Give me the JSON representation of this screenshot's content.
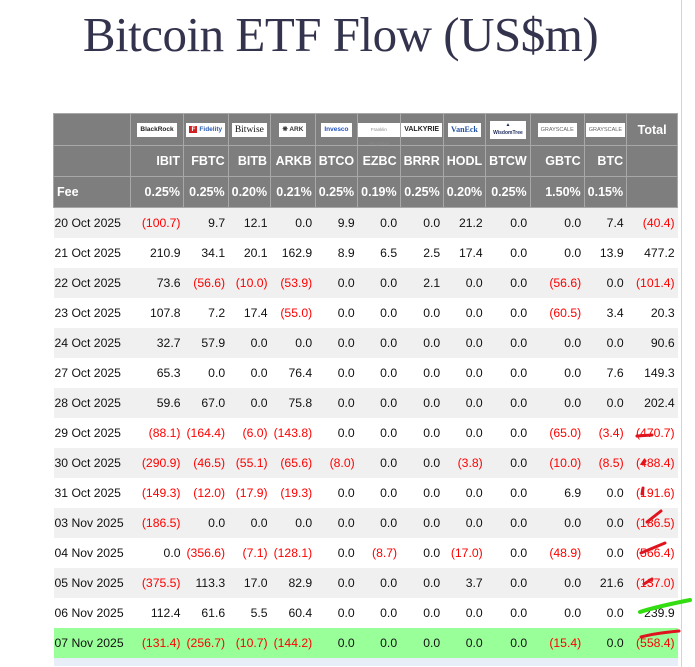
{
  "title": "Bitcoin ETF Flow (US$m)",
  "table": {
    "fee_label": "Fee",
    "total_label": "Total",
    "columns": [
      {
        "ticker": "IBIT",
        "issuer": "BlackRock",
        "fee": "0.25%"
      },
      {
        "ticker": "FBTC",
        "issuer": "Fidelity",
        "fee": "0.25%"
      },
      {
        "ticker": "BITB",
        "issuer": "Bitwise",
        "fee": "0.20%"
      },
      {
        "ticker": "ARKB",
        "issuer": "ARK Invest",
        "fee": "0.21%"
      },
      {
        "ticker": "BTCO",
        "issuer": "Invesco",
        "fee": "0.25%"
      },
      {
        "ticker": "EZBC",
        "issuer": "Franklin Templeton",
        "fee": "0.19%"
      },
      {
        "ticker": "BRRR",
        "issuer": "Valkyrie",
        "fee": "0.25%"
      },
      {
        "ticker": "HODL",
        "issuer": "VanEck",
        "fee": "0.20%"
      },
      {
        "ticker": "BTCW",
        "issuer": "WisdomTree",
        "fee": "0.25%"
      },
      {
        "ticker": "GBTC",
        "issuer": "Grayscale",
        "fee": "1.50%"
      },
      {
        "ticker": "BTC",
        "issuer": "Grayscale",
        "fee": "0.15%"
      }
    ],
    "rows": [
      {
        "date": "20 Oct 2025",
        "values": [
          "(100.7)",
          "9.7",
          "12.1",
          "0.0",
          "9.9",
          "0.0",
          "0.0",
          "21.2",
          "0.0",
          "0.0",
          "7.4"
        ],
        "total": "(40.4)"
      },
      {
        "date": "21 Oct 2025",
        "values": [
          "210.9",
          "34.1",
          "20.1",
          "162.9",
          "8.9",
          "6.5",
          "2.5",
          "17.4",
          "0.0",
          "0.0",
          "13.9"
        ],
        "total": "477.2"
      },
      {
        "date": "22 Oct 2025",
        "values": [
          "73.6",
          "(56.6)",
          "(10.0)",
          "(53.9)",
          "0.0",
          "0.0",
          "2.1",
          "0.0",
          "0.0",
          "(56.6)",
          "0.0"
        ],
        "total": "(101.4)"
      },
      {
        "date": "23 Oct 2025",
        "values": [
          "107.8",
          "7.2",
          "17.4",
          "(55.0)",
          "0.0",
          "0.0",
          "0.0",
          "0.0",
          "0.0",
          "(60.5)",
          "3.4"
        ],
        "total": "20.3"
      },
      {
        "date": "24 Oct 2025",
        "values": [
          "32.7",
          "57.9",
          "0.0",
          "0.0",
          "0.0",
          "0.0",
          "0.0",
          "0.0",
          "0.0",
          "0.0",
          "0.0"
        ],
        "total": "90.6"
      },
      {
        "date": "27 Oct 2025",
        "values": [
          "65.3",
          "0.0",
          "0.0",
          "76.4",
          "0.0",
          "0.0",
          "0.0",
          "0.0",
          "0.0",
          "0.0",
          "7.6"
        ],
        "total": "149.3"
      },
      {
        "date": "28 Oct 2025",
        "values": [
          "59.6",
          "67.0",
          "0.0",
          "75.8",
          "0.0",
          "0.0",
          "0.0",
          "0.0",
          "0.0",
          "0.0",
          "0.0"
        ],
        "total": "202.4"
      },
      {
        "date": "29 Oct 2025",
        "values": [
          "(88.1)",
          "(164.4)",
          "(6.0)",
          "(143.8)",
          "0.0",
          "0.0",
          "0.0",
          "0.0",
          "0.0",
          "(65.0)",
          "(3.4)"
        ],
        "total": "(470.7)"
      },
      {
        "date": "30 Oct 2025",
        "values": [
          "(290.9)",
          "(46.5)",
          "(55.1)",
          "(65.6)",
          "(8.0)",
          "0.0",
          "0.0",
          "(3.8)",
          "0.0",
          "(10.0)",
          "(8.5)"
        ],
        "total": "(488.4)"
      },
      {
        "date": "31 Oct 2025",
        "values": [
          "(149.3)",
          "(12.0)",
          "(17.9)",
          "(19.3)",
          "0.0",
          "0.0",
          "0.0",
          "0.0",
          "0.0",
          "6.9",
          "0.0"
        ],
        "total": "(191.6)"
      },
      {
        "date": "03 Nov 2025",
        "values": [
          "(186.5)",
          "0.0",
          "0.0",
          "0.0",
          "0.0",
          "0.0",
          "0.0",
          "0.0",
          "0.0",
          "0.0",
          "0.0"
        ],
        "total": "(186.5)"
      },
      {
        "date": "04 Nov 2025",
        "values": [
          "0.0",
          "(356.6)",
          "(7.1)",
          "(128.1)",
          "0.0",
          "(8.7)",
          "0.0",
          "(17.0)",
          "0.0",
          "(48.9)",
          "0.0"
        ],
        "total": "(566.4)"
      },
      {
        "date": "05 Nov 2025",
        "values": [
          "(375.5)",
          "113.3",
          "17.0",
          "82.9",
          "0.0",
          "0.0",
          "0.0",
          "3.7",
          "0.0",
          "0.0",
          "21.6"
        ],
        "total": "(137.0)"
      },
      {
        "date": "06 Nov 2025",
        "values": [
          "112.4",
          "61.6",
          "5.5",
          "60.4",
          "0.0",
          "0.0",
          "0.0",
          "0.0",
          "0.0",
          "0.0",
          "0.0"
        ],
        "total": "239.9"
      },
      {
        "date": "07 Nov 2025",
        "values": [
          "(131.4)",
          "(256.7)",
          "(10.7)",
          "(144.2)",
          "0.0",
          "0.0",
          "0.0",
          "0.0",
          "0.0",
          "(15.4)",
          "0.0"
        ],
        "total": "(558.4)",
        "highlight": true
      }
    ]
  },
  "colors": {
    "header_bg": "#7e7e7e",
    "negative": "#ff0000",
    "highlight_row": "#99ff99",
    "title": "#33334d",
    "annotation_red": "#e0141e",
    "annotation_green": "#33dd11"
  },
  "annotations": {
    "marks": [
      {
        "row": "29 Oct 2025",
        "color": "red"
      },
      {
        "row": "30 Oct 2025",
        "color": "red"
      },
      {
        "row": "31 Oct 2025",
        "color": "red"
      },
      {
        "row": "03 Nov 2025",
        "color": "red"
      },
      {
        "row": "04 Nov 2025",
        "color": "red"
      },
      {
        "row": "05 Nov 2025",
        "color": "red"
      },
      {
        "row": "06 Nov 2025",
        "color": "green"
      },
      {
        "row": "07 Nov 2025",
        "color": "red"
      }
    ]
  }
}
